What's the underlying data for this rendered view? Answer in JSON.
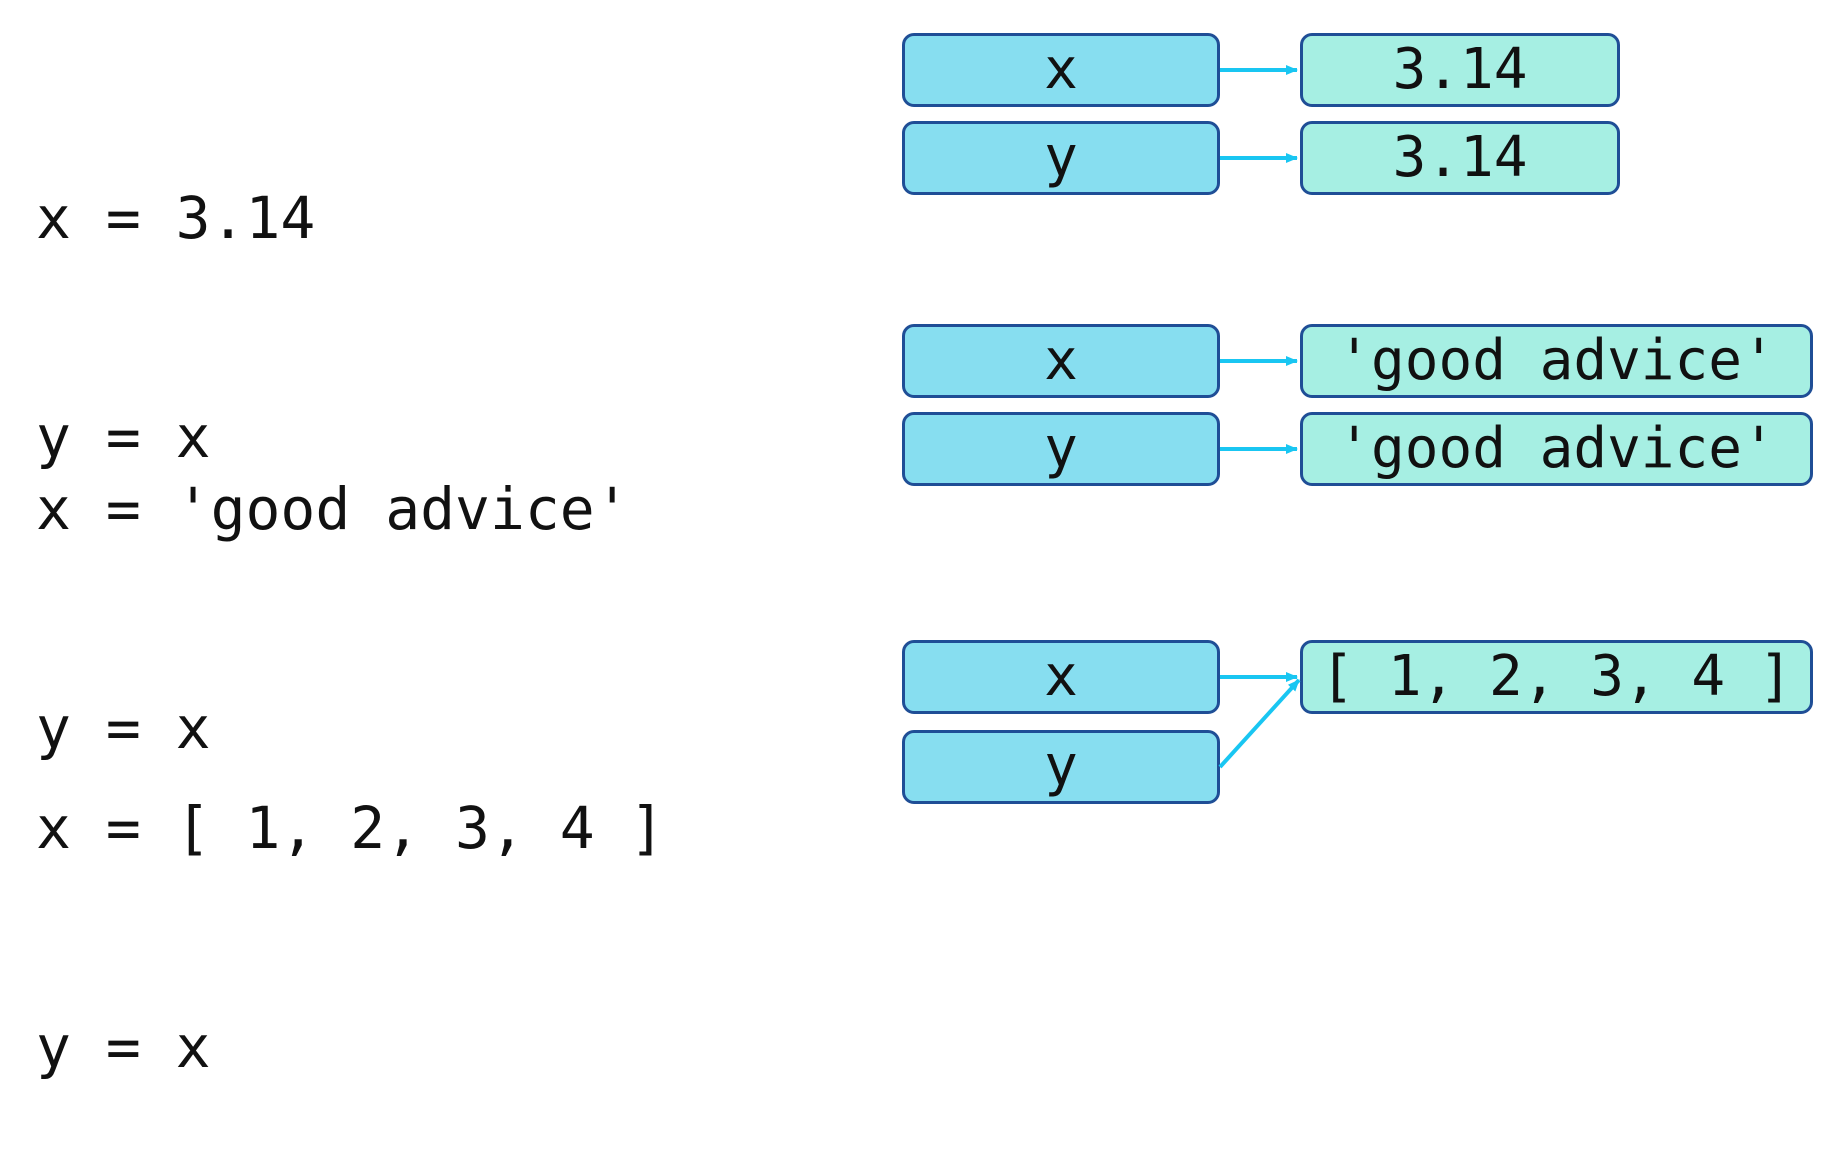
{
  "examples": [
    {
      "code": [
        "x = 3.14",
        "y = x"
      ],
      "vars": [
        "x",
        "y"
      ],
      "values": [
        "3.14",
        "3.14"
      ]
    },
    {
      "code": [
        "x = 'good advice'",
        "y = x"
      ],
      "vars": [
        "x",
        "y"
      ],
      "values": [
        "'good advice'",
        "'good advice'"
      ]
    },
    {
      "code": [
        "x = [ 1, 2, 3, 4 ]",
        "y = x"
      ],
      "vars": [
        "x",
        "y"
      ],
      "values": [
        "[ 1, 2, 3, 4 ]"
      ]
    }
  ],
  "colors": {
    "variable_box": "#87def0",
    "value_box": "#a6efe3",
    "box_border": "#1f4e96",
    "arrow": "#19c6f2"
  }
}
